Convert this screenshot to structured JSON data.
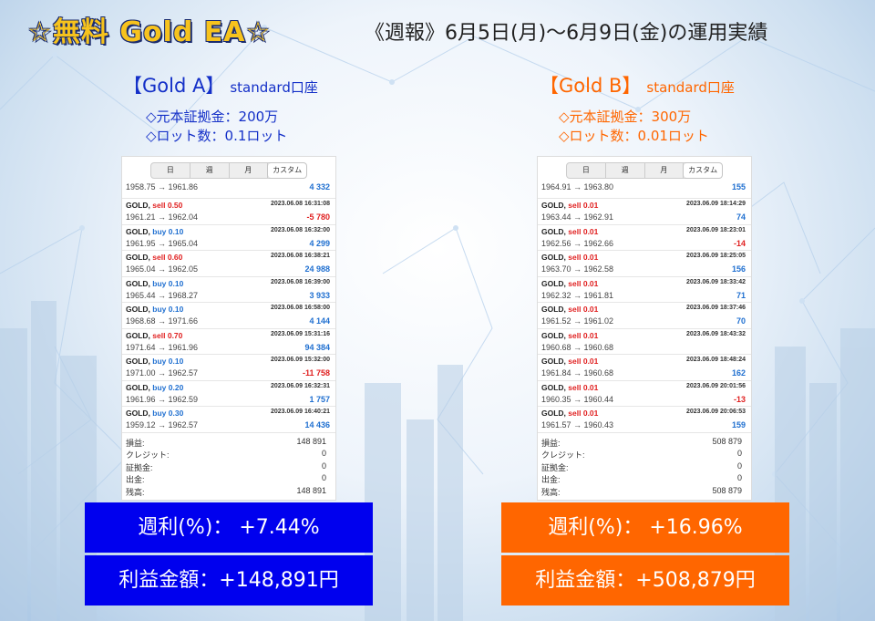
{
  "header": {
    "title": "☆無料 Gold EA☆",
    "report": "《週報》6月5日(月)～6月9日(金)の運用実績"
  },
  "accounts": [
    {
      "name": "【Gold A】",
      "type": "standard口座",
      "margin": "◇元本証拠金：200万",
      "lot": "◇ロット数：0.1ロット",
      "tabs": [
        "日",
        "週",
        "月",
        "カスタム"
      ],
      "trades": [
        {
          "sym": "",
          "side": "",
          "kind": "",
          "dt": "",
          "prices": "1958.75 → 1961.86",
          "pl": "4 332",
          "sign": "pos"
        },
        {
          "sym": "GOLD,",
          "side": "sell 0.50",
          "kind": "sell",
          "dt": "2023.06.08 16:31:08",
          "prices": "1961.21 → 1962.04",
          "pl": "-5 780",
          "sign": "neg"
        },
        {
          "sym": "GOLD,",
          "side": "buy 0.10",
          "kind": "buy",
          "dt": "2023.06.08 16:32:00",
          "prices": "1961.95 → 1965.04",
          "pl": "4 299",
          "sign": "pos"
        },
        {
          "sym": "GOLD,",
          "side": "sell 0.60",
          "kind": "sell",
          "dt": "2023.06.08 16:38:21",
          "prices": "1965.04 → 1962.05",
          "pl": "24 988",
          "sign": "pos"
        },
        {
          "sym": "GOLD,",
          "side": "buy 0.10",
          "kind": "buy",
          "dt": "2023.06.08 16:39:00",
          "prices": "1965.44 → 1968.27",
          "pl": "3 933",
          "sign": "pos"
        },
        {
          "sym": "GOLD,",
          "side": "buy 0.10",
          "kind": "buy",
          "dt": "2023.06.08 16:58:00",
          "prices": "1968.68 → 1971.66",
          "pl": "4 144",
          "sign": "pos"
        },
        {
          "sym": "GOLD,",
          "side": "sell 0.70",
          "kind": "sell",
          "dt": "2023.06.09 15:31:16",
          "prices": "1971.64 → 1961.96",
          "pl": "94 384",
          "sign": "pos"
        },
        {
          "sym": "GOLD,",
          "side": "buy 0.10",
          "kind": "buy",
          "dt": "2023.06.09 15:32:00",
          "prices": "1971.00 → 1962.57",
          "pl": "-11 758",
          "sign": "neg"
        },
        {
          "sym": "GOLD,",
          "side": "buy 0.20",
          "kind": "buy",
          "dt": "2023.06.09 16:32:31",
          "prices": "1961.96 → 1962.59",
          "pl": "1 757",
          "sign": "pos"
        },
        {
          "sym": "GOLD,",
          "side": "buy 0.30",
          "kind": "buy",
          "dt": "2023.06.09 16:40:21",
          "prices": "1959.12 → 1962.57",
          "pl": "14 436",
          "sign": "pos"
        }
      ],
      "summary": [
        {
          "label": "損益:",
          "value": "148 891"
        },
        {
          "label": "クレジット:",
          "value": "0"
        },
        {
          "label": "証拠金:",
          "value": "0"
        },
        {
          "label": "出金:",
          "value": "0"
        },
        {
          "label": "残高:",
          "value": "148 891"
        }
      ],
      "weekly": "週利(%)：  +7.44%",
      "profit": "利益金額：+148,891円",
      "color": "#0000ee"
    },
    {
      "name": "【Gold B】",
      "type": "standard口座",
      "margin": "◇元本証拠金：300万",
      "lot": "◇ロット数：0.01ロット",
      "tabs": [
        "日",
        "週",
        "月",
        "カスタム"
      ],
      "trades": [
        {
          "sym": "",
          "side": "",
          "kind": "",
          "dt": "",
          "prices": "1964.91 → 1963.80",
          "pl": "155",
          "sign": "pos"
        },
        {
          "sym": "GOLD,",
          "side": "sell 0.01",
          "kind": "sell",
          "dt": "2023.06.09 18:14:29",
          "prices": "1963.44 → 1962.91",
          "pl": "74",
          "sign": "pos"
        },
        {
          "sym": "GOLD,",
          "side": "sell 0.01",
          "kind": "sell",
          "dt": "2023.06.09 18:23:01",
          "prices": "1962.56 → 1962.66",
          "pl": "-14",
          "sign": "neg"
        },
        {
          "sym": "GOLD,",
          "side": "sell 0.01",
          "kind": "sell",
          "dt": "2023.06.09 18:25:05",
          "prices": "1963.70 → 1962.58",
          "pl": "156",
          "sign": "pos"
        },
        {
          "sym": "GOLD,",
          "side": "sell 0.01",
          "kind": "sell",
          "dt": "2023.06.09 18:33:42",
          "prices": "1962.32 → 1961.81",
          "pl": "71",
          "sign": "pos"
        },
        {
          "sym": "GOLD,",
          "side": "sell 0.01",
          "kind": "sell",
          "dt": "2023.06.09 18:37:46",
          "prices": "1961.52 → 1961.02",
          "pl": "70",
          "sign": "pos"
        },
        {
          "sym": "GOLD,",
          "side": "sell 0.01",
          "kind": "sell",
          "dt": "2023.06.09 18:43:32",
          "prices": "1960.68 → 1960.68",
          "pl": "",
          "sign": "pos"
        },
        {
          "sym": "GOLD,",
          "side": "sell 0.01",
          "kind": "sell",
          "dt": "2023.06.09 18:48:24",
          "prices": "1961.84 → 1960.68",
          "pl": "162",
          "sign": "pos"
        },
        {
          "sym": "GOLD,",
          "side": "sell 0.01",
          "kind": "sell",
          "dt": "2023.06.09 20:01:56",
          "prices": "1960.35 → 1960.44",
          "pl": "-13",
          "sign": "neg"
        },
        {
          "sym": "GOLD,",
          "side": "sell 0.01",
          "kind": "sell",
          "dt": "2023.06.09 20:06:53",
          "prices": "1961.57 → 1960.43",
          "pl": "159",
          "sign": "pos"
        }
      ],
      "summary": [
        {
          "label": "損益:",
          "value": "508 879"
        },
        {
          "label": "クレジット:",
          "value": "0"
        },
        {
          "label": "証拠金:",
          "value": "0"
        },
        {
          "label": "出金:",
          "value": "0"
        },
        {
          "label": "残高:",
          "value": "508 879"
        }
      ],
      "weekly": "週利(%)：  +16.96%",
      "profit": "利益金額：+508,879円",
      "color": "#ff6600"
    }
  ]
}
